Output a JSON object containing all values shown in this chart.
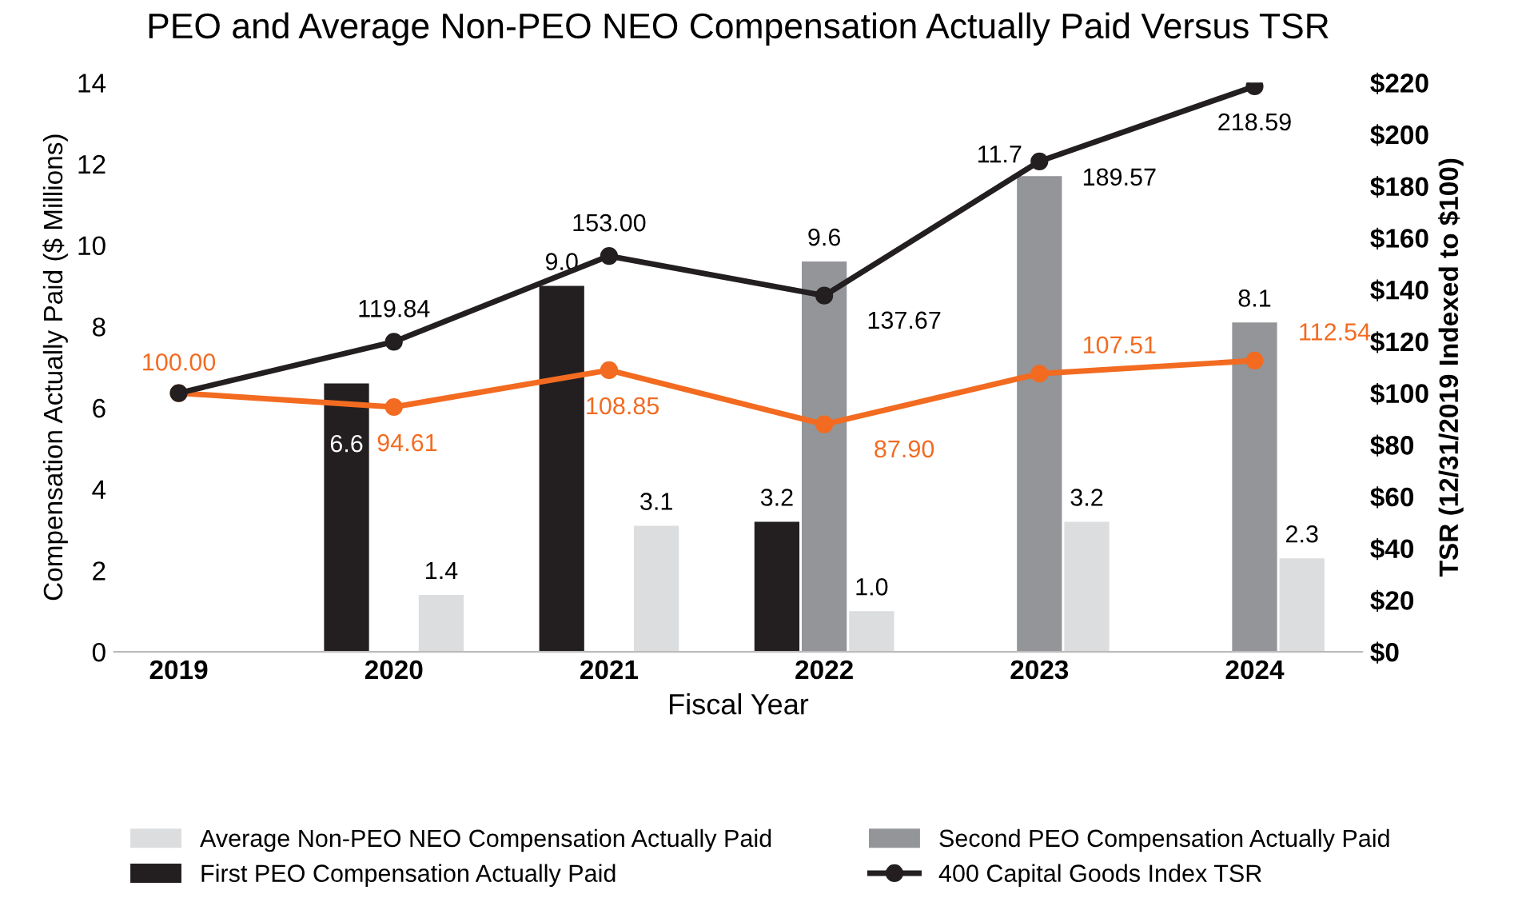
{
  "chart_data": {
    "type": "bar",
    "title": "PEO and Average Non-PEO NEO Compensation Actually Paid Versus TSR",
    "xlabel": "Fiscal Year",
    "ylabel": "Compensation Actually Paid ($ Millions)",
    "y2label": "TSR (12/31/2019 Indexed to $100)",
    "categories": [
      "2019",
      "2020",
      "2021",
      "2022",
      "2023",
      "2024"
    ],
    "ylim": [
      0,
      14
    ],
    "yticks": [
      0,
      2,
      4,
      6,
      8,
      10,
      12,
      14
    ],
    "y2lim": [
      0,
      220
    ],
    "y2ticks": [
      {
        "value": 0,
        "label": "$0"
      },
      {
        "value": 20,
        "label": "$20"
      },
      {
        "value": 40,
        "label": "$40"
      },
      {
        "value": 60,
        "label": "$60"
      },
      {
        "value": 80,
        "label": "$80"
      },
      {
        "value": 100,
        "label": "$100"
      },
      {
        "value": 120,
        "label": "$120"
      },
      {
        "value": 140,
        "label": "$140"
      },
      {
        "value": 160,
        "label": "$160"
      },
      {
        "value": 180,
        "label": "$180"
      },
      {
        "value": 200,
        "label": "$200"
      },
      {
        "value": 220,
        "label": "$220"
      }
    ],
    "grid": false,
    "legend": "bottom",
    "marker": "circle",
    "line_style": "solid",
    "series": [
      {
        "name": "Average Non-PEO NEO Compensation Actually Paid",
        "color": "#dcdddf",
        "values": [
          null,
          1.4,
          3.1,
          1.0,
          3.2,
          2.3
        ],
        "value_labels": [
          null,
          "1.4",
          "3.1",
          "1.0",
          "3.2",
          "2.3"
        ]
      },
      {
        "name": "First PEO Compensation Actually Paid",
        "color": "#231f20",
        "values": [
          null,
          6.6,
          9.0,
          3.2,
          null,
          null
        ],
        "value_labels": [
          null,
          "6.6",
          "9.0",
          "3.2",
          null,
          null
        ]
      },
      {
        "name": "Second PEO Compensation Actually Paid",
        "color": "#939598",
        "values": [
          null,
          null,
          null,
          9.6,
          11.7,
          8.1
        ],
        "value_labels": [
          null,
          null,
          null,
          "9.6",
          "11.7",
          "8.1"
        ]
      },
      {
        "type": "line",
        "axis": "y2",
        "color": "#f26b21",
        "values": [
          100.0,
          94.61,
          108.85,
          87.9,
          107.51,
          112.54
        ],
        "value_labels": [
          "100.00",
          "94.61",
          "108.85",
          "87.90",
          "107.51",
          "112.54"
        ]
      },
      {
        "name": "400 Capital Goods Index TSR",
        "type": "line",
        "axis": "y2",
        "color": "#231f20",
        "values": [
          100.0,
          119.84,
          153.0,
          137.67,
          189.57,
          218.59
        ],
        "value_labels": [
          null,
          "119.84",
          "153.00",
          "137.67",
          "189.57",
          "218.59"
        ]
      }
    ]
  }
}
